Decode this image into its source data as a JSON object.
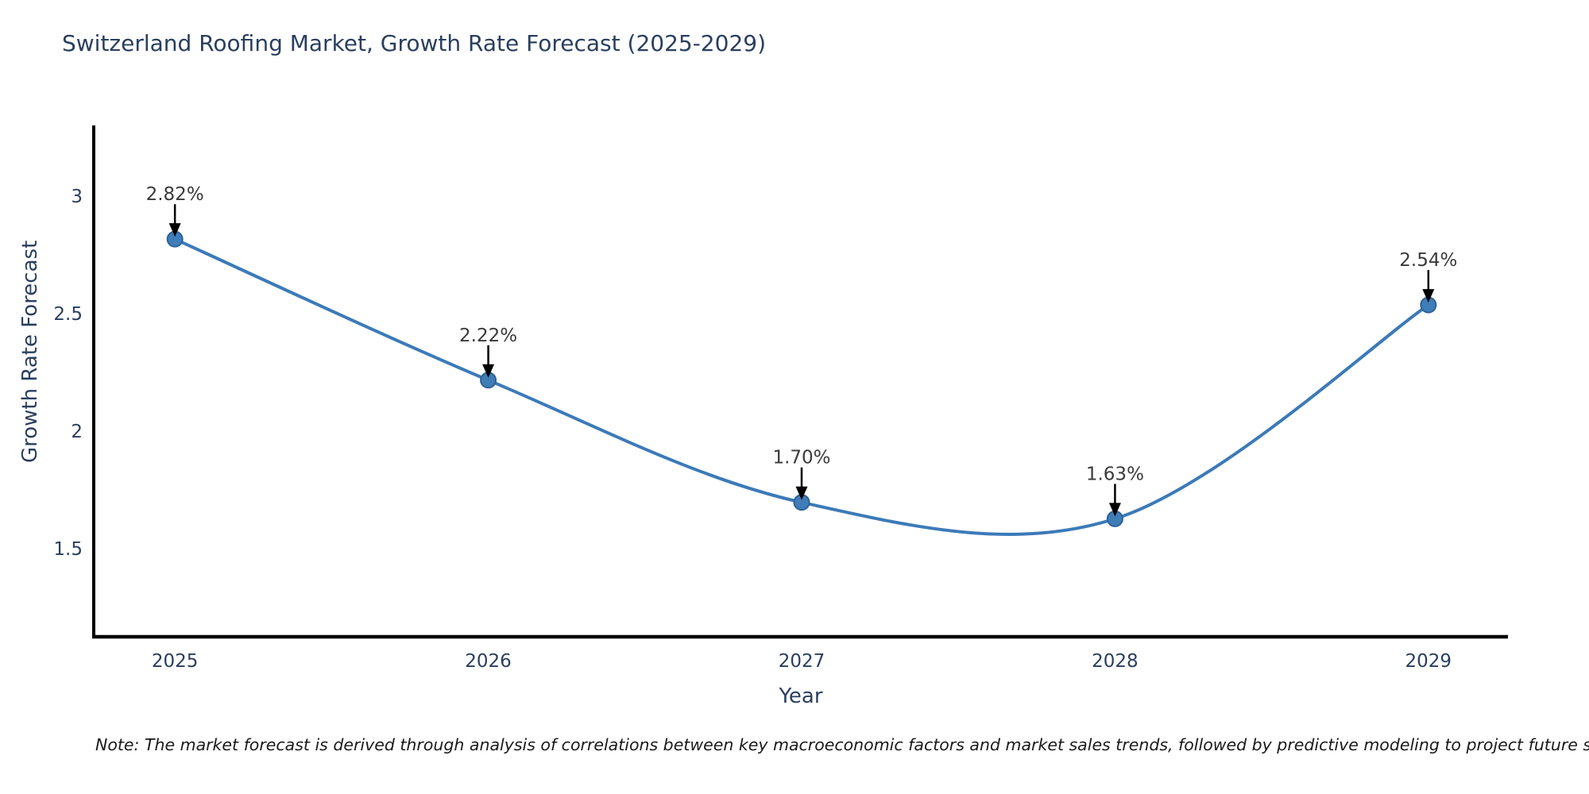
{
  "header": {
    "title": "Switzerland Roofing Market, Growth Rate Forecast (2025-2029)"
  },
  "chart_data": {
    "type": "line",
    "title": "Switzerland Roofing Market, Growth Rate Forecast (2025-2029)",
    "x": [
      2025,
      2026,
      2027,
      2028,
      2029
    ],
    "x_tick_labels": [
      "2025",
      "2026",
      "2027",
      "2028",
      "2029"
    ],
    "series": [
      {
        "name": "Growth Rate Forecast",
        "values": [
          2.82,
          2.22,
          1.7,
          1.63,
          2.54
        ]
      }
    ],
    "point_labels": [
      "2.82%",
      "2.22%",
      "1.70%",
      "1.63%",
      "2.54%"
    ],
    "xlabel": "Year",
    "ylabel": "Growth Rate Forecast",
    "yticks": [
      1.5,
      2,
      2.5,
      3
    ],
    "ytick_labels": [
      "1.5",
      "2",
      "2.5",
      "3"
    ],
    "ylim": [
      1.128,
      3.297
    ],
    "xlim": [
      2024.741,
      2029.254
    ],
    "grid": false,
    "legend": "none",
    "curve": "smooth-spline",
    "colors": {
      "line": "#3c7ab8",
      "marker_fill": "#3f7db8",
      "marker_stroke": "#2e6295",
      "axis_line": "#000000",
      "tick_label": "#2a3f5f",
      "axis_title": "#2a3f5f",
      "title": "#2a3f5f",
      "annotation_text": "#3a3a3a",
      "annotation_arrow": "#000000",
      "background": "#ffffff"
    }
  },
  "footer": {
    "note": "Note: The market forecast is derived through analysis of correlations between key macroeconomic factors and market sales trends, followed by predictive modeling to project future sales"
  }
}
